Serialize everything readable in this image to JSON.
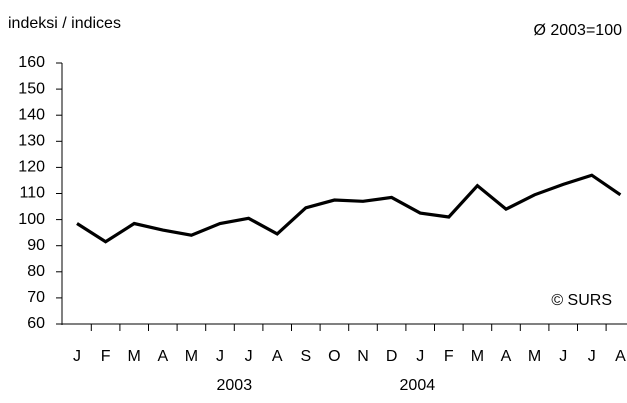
{
  "chart_data": {
    "type": "line",
    "y_label": "indeksi / indices",
    "note": "Ø 2003=100",
    "source": "© SURS",
    "categories": [
      "J",
      "F",
      "M",
      "A",
      "M",
      "J",
      "J",
      "A",
      "S",
      "O",
      "N",
      "D",
      "J",
      "F",
      "M",
      "A",
      "M",
      "J",
      "J",
      "A"
    ],
    "x_groups": [
      "2003",
      "2004"
    ],
    "values": [
      98.5,
      91.5,
      98.5,
      96,
      94,
      98.5,
      100.5,
      94.5,
      104.5,
      107.5,
      107,
      108.5,
      102.5,
      101,
      113,
      104,
      109.5,
      113.5,
      117,
      109.5
    ],
    "color": "#000000",
    "ylim": [
      60,
      160
    ],
    "yticks": [
      60,
      70,
      80,
      90,
      100,
      110,
      120,
      130,
      140,
      150,
      160
    ],
    "grid": false
  }
}
